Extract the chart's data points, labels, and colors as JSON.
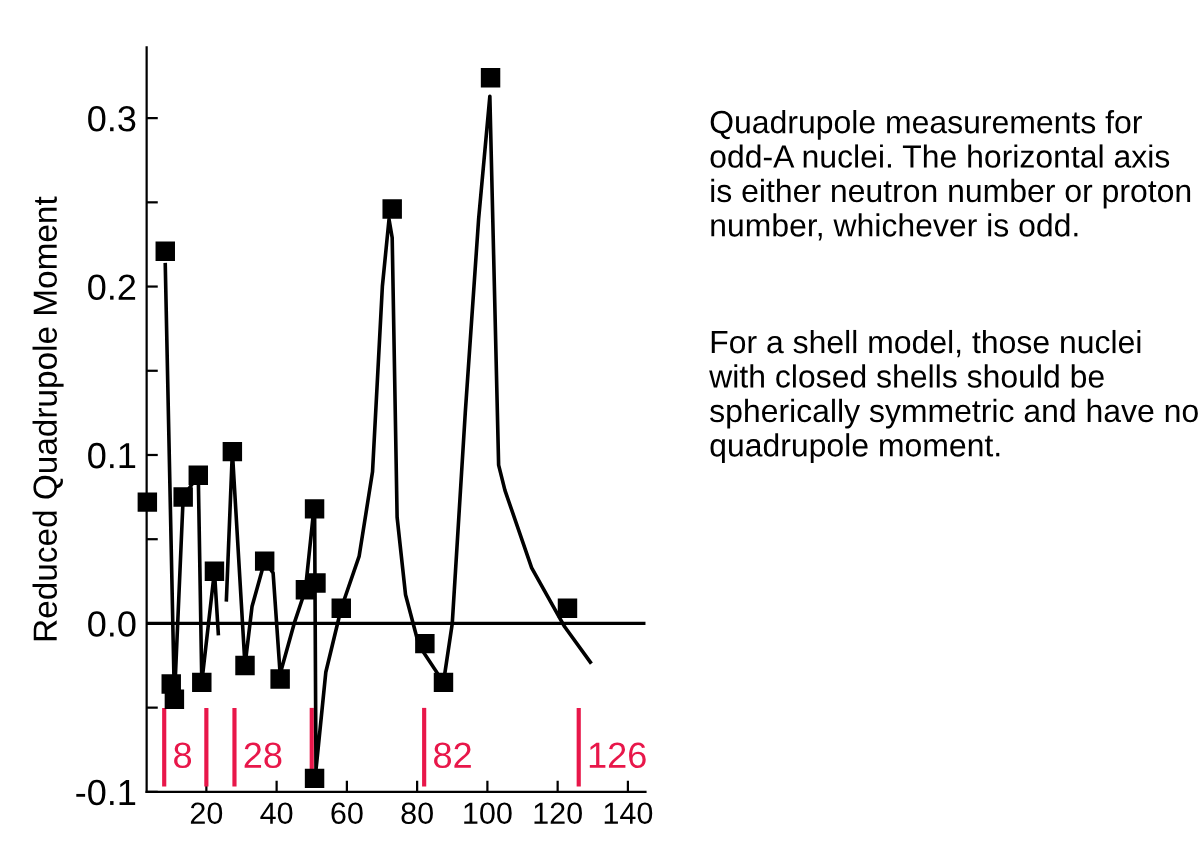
{
  "chart_data": {
    "type": "scatter",
    "ylabel": "Reduced Quadrupole Moment",
    "xlim": [
      3,
      145
    ],
    "ylim": [
      -0.1,
      0.342
    ],
    "xticks": [
      20,
      40,
      60,
      80,
      100,
      120,
      140
    ],
    "yticks": [
      {
        "value": -0.1,
        "label": "-0.1"
      },
      {
        "value": -0.05,
        "label": null
      },
      {
        "value": 0,
        "label": "0.0"
      },
      {
        "value": 0.05,
        "label": null
      },
      {
        "value": 0.1,
        "label": "0.1"
      },
      {
        "value": 0.15,
        "label": null
      },
      {
        "value": 0.2,
        "label": "0.2"
      },
      {
        "value": 0.25,
        "label": null
      },
      {
        "value": 0.3,
        "label": "0.3"
      }
    ],
    "grid": false,
    "legend": false,
    "marker": "square",
    "series": [
      {
        "color": "#000000",
        "x": [
          3.2,
          8.3,
          10,
          10.9,
          13.4,
          17.7,
          18.7,
          22.3,
          27.4,
          31,
          36.6,
          41,
          48.2,
          50.8,
          51.2,
          50.8,
          58.4,
          72.9,
          82.2,
          87.5,
          100.9,
          122.8
        ],
        "values": [
          0.072,
          0.221,
          -0.036,
          -0.045,
          0.075,
          0.088,
          -0.035,
          0.031,
          0.102,
          -0.025,
          0.037,
          -0.033,
          0.02,
          0.068,
          0.024,
          -0.092,
          0.009,
          0.246,
          -0.012,
          -0.035,
          0.324,
          0.009
        ]
      },
      {
        "type": "line",
        "color": "#000000",
        "marker": "none",
        "line_style": "solid",
        "x": [
          8.3,
          10.9,
          13.4,
          17.7,
          18.7,
          22.3,
          23.4,
          24.5,
          25.7,
          27.4,
          31,
          33,
          36.6,
          39,
          41,
          45,
          48.2,
          50.8,
          51.2,
          54,
          58.4,
          63.5,
          67.3,
          70.1,
          72,
          72.9,
          74.3,
          76.7,
          80.5,
          87.5,
          90,
          93.7,
          97.5,
          100.7,
          103.2,
          105,
          112.6,
          122,
          129.3
        ],
        "values": [
          0.213,
          -0.045,
          0.075,
          0.088,
          -0.035,
          0.031,
          -0.006,
          null,
          0.014,
          0.102,
          -0.025,
          0.01,
          0.037,
          0.03,
          -0.03,
          0,
          0.02,
          0.072,
          -0.087,
          -0.029,
          0.009,
          0.04,
          0.09,
          0.2,
          0.24,
          0.229,
          0.063,
          0.017,
          -0.013,
          -0.035,
          0,
          0.125,
          0.24,
          0.313,
          0.094,
          0.079,
          0.033,
          -0.002,
          -0.023
        ]
      }
    ],
    "ref_lines": [
      {
        "axis": "y",
        "value": 0,
        "color": "#000000"
      },
      {
        "axis": "x",
        "value": 8,
        "label": "8",
        "color": "#e8174a"
      },
      {
        "axis": "x",
        "value": 20,
        "color": "#e8174a"
      },
      {
        "axis": "x",
        "value": 28,
        "label": "28",
        "color": "#e8174a"
      },
      {
        "axis": "x",
        "value": 50,
        "color": "#e8174a"
      },
      {
        "axis": "x",
        "value": 82,
        "label": "82",
        "color": "#e8174a"
      },
      {
        "axis": "x",
        "value": 126,
        "label": "126",
        "color": "#e8174a"
      }
    ],
    "annotations": [
      "Quadrupole measurements for odd-A nuclei. The horizontal axis is either neutron number or proton number, whichever is odd.",
      "For a shell model, those nuclei with closed shells should be spherically symmetric and have no quadrupole moment."
    ]
  }
}
